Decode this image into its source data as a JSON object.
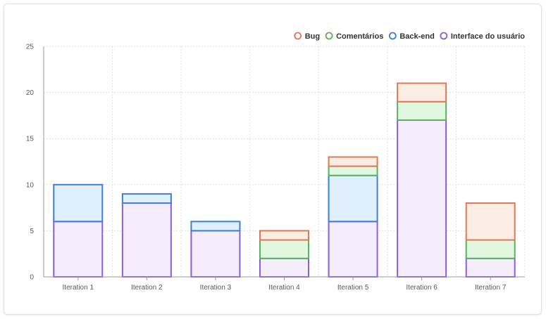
{
  "chart_data": {
    "type": "bar",
    "stacked": true,
    "categories": [
      "Iteration 1",
      "Iteration 2",
      "Iteration 3",
      "Iteration 4",
      "Iteration 5",
      "Iteration 6",
      "Iteration 7"
    ],
    "series": [
      {
        "name": "Interface do usuário",
        "stroke": "#8a5ee0",
        "fill": "#f5ecfc",
        "values": [
          6,
          8,
          5,
          2,
          6,
          17,
          2
        ]
      },
      {
        "name": "Back-end",
        "stroke": "#3d7fd1",
        "fill": "#dff0fc",
        "values": [
          4,
          1,
          1,
          0,
          5,
          0,
          0
        ]
      },
      {
        "name": "Comentários",
        "stroke": "#59b35e",
        "fill": "#e1f7e0",
        "values": [
          0,
          0,
          0,
          2,
          1,
          2,
          2
        ]
      },
      {
        "name": "Bug",
        "stroke": "#e07858",
        "fill": "#fcede2",
        "values": [
          0,
          0,
          0,
          1,
          1,
          2,
          4
        ]
      }
    ],
    "legend_order": [
      "Bug",
      "Comentários",
      "Back-end",
      "Interface do usuário"
    ],
    "ylim": [
      0,
      25
    ],
    "yticks": [
      0,
      5,
      10,
      15,
      20,
      25
    ],
    "grid": true,
    "legend_position": "top-right",
    "title": "",
    "xlabel": "",
    "ylabel": ""
  }
}
